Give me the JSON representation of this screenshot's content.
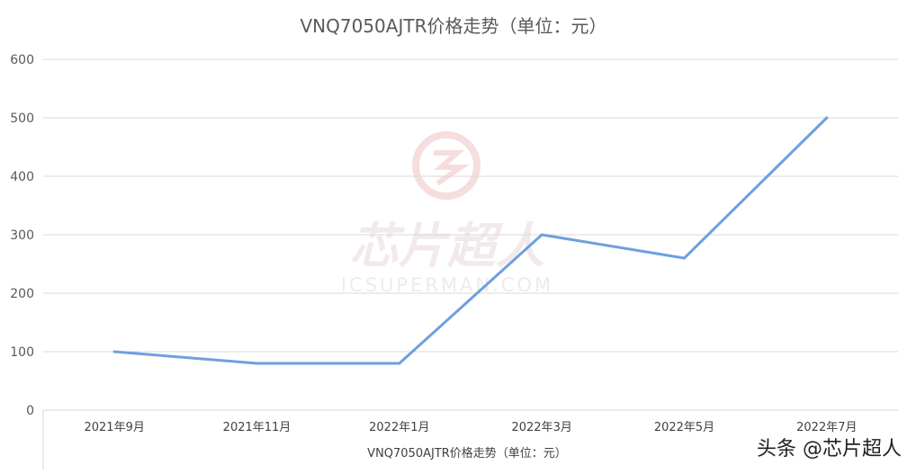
{
  "chart_data": {
    "type": "line",
    "title": "VNQ7050AJTR价格走势（单位：元）",
    "xlabel": "VNQ7050AJTR价格走势（单位：元）",
    "ylabel": "",
    "categories": [
      "2021年9月",
      "2021年11月",
      "2022年1月",
      "2022年3月",
      "2022年5月",
      "2022年7月"
    ],
    "series": [
      {
        "values": [
          100,
          80,
          80,
          300,
          260,
          500
        ]
      }
    ],
    "ylim": [
      0,
      600
    ],
    "yticks": [
      0,
      100,
      200,
      300,
      400,
      500,
      600
    ],
    "grid": true,
    "legend": "none",
    "line_color": "#6f9fde"
  },
  "watermark": {
    "brand": "芯片超人",
    "url": "ICSUPERMAN.COM"
  },
  "credit": "头条 @芯片超人"
}
